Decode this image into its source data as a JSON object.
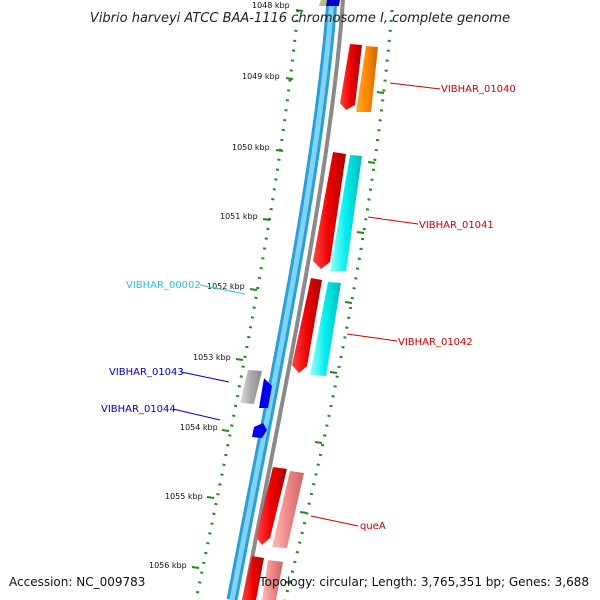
{
  "title": "Vibrio harveyi ATCC BAA-1116 chromosome I, complete genome",
  "footer": {
    "accession": "Accession: NC_009783",
    "topology": "Topology: circular; Length: 3,765,351 bp; Genes: 3,688"
  },
  "ticks": [
    {
      "label": "1048 kbp"
    },
    {
      "label": "1049 kbp"
    },
    {
      "label": "1050 kbp"
    },
    {
      "label": "1051 kbp"
    },
    {
      "label": "1052 kbp"
    },
    {
      "label": "1053 kbp"
    },
    {
      "label": "1054 kbp"
    },
    {
      "label": "1055 kbp"
    },
    {
      "label": "1056 kbp"
    }
  ],
  "gene_labels": [
    {
      "text": "VIBHAR_01040",
      "color": "#cc0000"
    },
    {
      "text": "VIBHAR_01041",
      "color": "#cc0000"
    },
    {
      "text": "VIBHAR_01042",
      "color": "#cc0000"
    },
    {
      "text": "queA",
      "color": "#cc0000"
    },
    {
      "text": "VIBHAR_00002",
      "color": "#33bbdd"
    },
    {
      "text": "VIBHAR_01043",
      "color": "#0000bb"
    },
    {
      "text": "VIBHAR_01044",
      "color": "#0000bb"
    }
  ],
  "colors": {
    "backbone_blue": "#33b5e8",
    "backbone_gray": "#8a8a8a",
    "tick_green": "#228822",
    "gene_red": "#ee0000",
    "gene_orange": "#ff8800",
    "gene_cyan": "#00eeee",
    "gene_pink": "#ee8888",
    "gene_blue": "#0000ee",
    "gene_gray": "#aaaaaa",
    "gene_olive": "#bbbb88"
  }
}
